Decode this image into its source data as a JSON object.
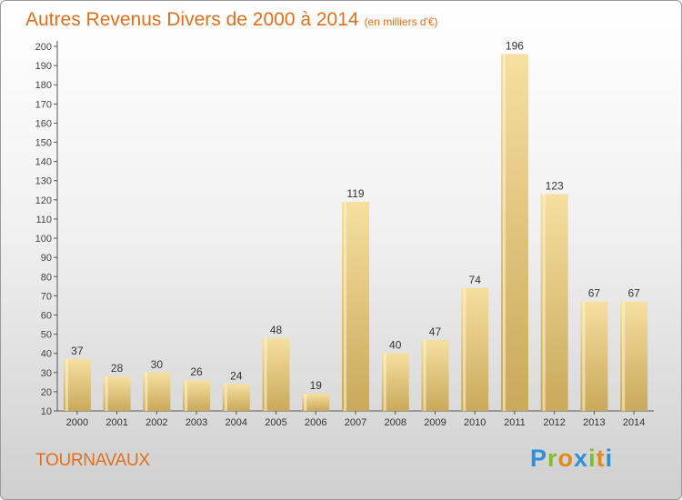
{
  "title": "Autres Revenus Divers de 2000 à 2014",
  "unit_note": "(en milliers d'€)",
  "town": "TOURNAVAUX",
  "logo": {
    "letters": [
      "P",
      "r",
      "o",
      "x",
      "i",
      "t",
      "i"
    ],
    "colors": [
      "#2e8fd6",
      "#7bbf2a",
      "#e08a1e",
      "#2e8fd6",
      "#7bbf2a",
      "#e08a1e",
      "#2e8fd6"
    ]
  },
  "colors": {
    "bar_light": "#f6dfa0",
    "bar_dark": "#c9a95a",
    "accent": "#e0701e"
  },
  "chart_data": {
    "type": "bar",
    "categories": [
      "2000",
      "2001",
      "2002",
      "2003",
      "2004",
      "2005",
      "2006",
      "2007",
      "2008",
      "2009",
      "2010",
      "2011",
      "2012",
      "2013",
      "2014"
    ],
    "values": [
      37,
      28,
      30,
      26,
      24,
      48,
      19,
      119,
      40,
      47,
      74,
      196,
      123,
      67,
      67
    ],
    "ylim": [
      10,
      200
    ],
    "ytick_step": 10,
    "grid": false,
    "show_value_labels": true
  }
}
